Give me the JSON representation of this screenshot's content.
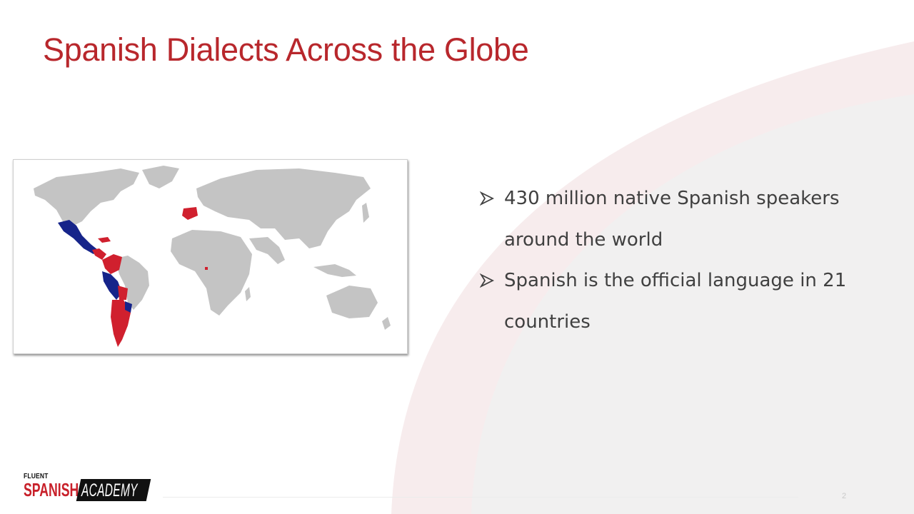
{
  "slide": {
    "title": "Spanish Dialects Across the Globe",
    "page_number": "2"
  },
  "bullets": [
    {
      "text": " 430 million native Spanish speakers around the world"
    },
    {
      "text": "Spanish is the official language in 21 countries"
    }
  ],
  "map": {
    "description_icon": "world-map-image",
    "colors": {
      "land": "#c4c4c4",
      "spanish_red": "#d0202e",
      "spanish_blue": "#16248a"
    }
  },
  "logo": {
    "line1": "FLUENT",
    "line2": "SPANISH",
    "line3": "ACADEMY"
  },
  "theme": {
    "title_color": "#b8272c",
    "decor_pink": "#f7eced",
    "decor_grey": "#f1f0f0"
  }
}
